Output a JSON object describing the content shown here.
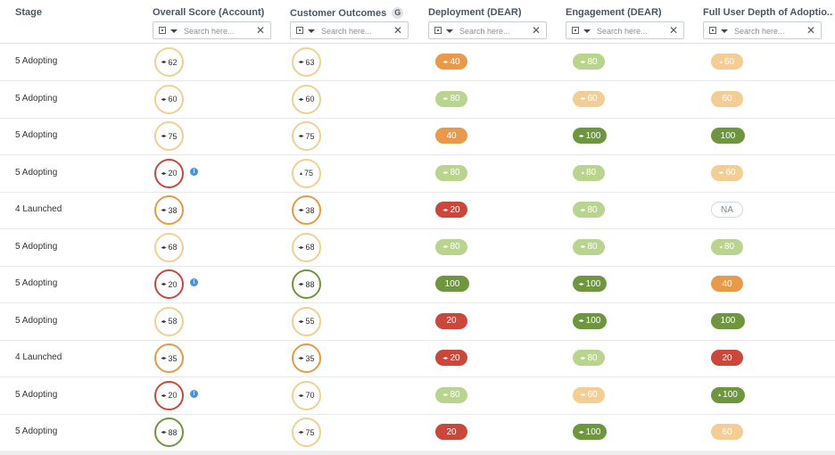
{
  "columns": [
    {
      "title": "Stage"
    },
    {
      "title": "Overall Score (Account)",
      "filter_placeholder": "Search here..."
    },
    {
      "title": "Customer Outcomes",
      "badge": "G",
      "filter_placeholder": "Search here..."
    },
    {
      "title": "Deployment (DEAR)",
      "filter_placeholder": "Search here..."
    },
    {
      "title": "Engagement (DEAR)",
      "filter_placeholder": "Search here..."
    },
    {
      "title": "Full User Depth of Adoptio...",
      "filter_placeholder": "Search here..."
    }
  ],
  "status_colors": {
    "orange": "#e99a48",
    "red": "#c9473b",
    "light_green": "#b9d48f",
    "dark_green": "#6e963f",
    "light_orange": "#f3cd93"
  },
  "info_icon": "i",
  "rows": [
    {
      "stage": "5 Adopting",
      "overall": {
        "value": "62",
        "trend": "flat",
        "ring": "light"
      },
      "outcomes": {
        "value": "63",
        "trend": "flat",
        "ring": "light"
      },
      "deployment": {
        "value": "40",
        "trend": "flat",
        "color": "orange"
      },
      "engagement": {
        "value": "80",
        "trend": "flat",
        "color": "light-green"
      },
      "depth": {
        "value": "60",
        "trend": "up",
        "color": "light-orange"
      }
    },
    {
      "stage": "5 Adopting",
      "overall": {
        "value": "60",
        "trend": "flat",
        "ring": "light"
      },
      "outcomes": {
        "value": "60",
        "trend": "flat",
        "ring": "light"
      },
      "deployment": {
        "value": "80",
        "trend": "flat",
        "color": "light-green"
      },
      "engagement": {
        "value": "60",
        "trend": "flat",
        "color": "light-orange"
      },
      "depth": {
        "value": "60",
        "trend": "none",
        "color": "light-orange"
      }
    },
    {
      "stage": "5 Adopting",
      "overall": {
        "value": "75",
        "trend": "flat",
        "ring": "light"
      },
      "outcomes": {
        "value": "75",
        "trend": "flat",
        "ring": "light"
      },
      "deployment": {
        "value": "40",
        "trend": "none",
        "color": "orange"
      },
      "engagement": {
        "value": "100",
        "trend": "flat",
        "color": "dark-green"
      },
      "depth": {
        "value": "100",
        "trend": "none",
        "color": "dark-green"
      }
    },
    {
      "stage": "5 Adopting",
      "overall": {
        "value": "20",
        "trend": "flat",
        "ring": "red",
        "info": true
      },
      "outcomes": {
        "value": "75",
        "trend": "up",
        "ring": "light"
      },
      "deployment": {
        "value": "80",
        "trend": "flat",
        "color": "light-green"
      },
      "engagement": {
        "value": "80",
        "trend": "up",
        "color": "light-green"
      },
      "depth": {
        "value": "60",
        "trend": "flat",
        "color": "light-orange"
      }
    },
    {
      "stage": "4 Launched",
      "overall": {
        "value": "38",
        "trend": "flat",
        "ring": "orange"
      },
      "outcomes": {
        "value": "38",
        "trend": "flat",
        "ring": "orange"
      },
      "deployment": {
        "value": "20",
        "trend": "flat",
        "color": "red"
      },
      "engagement": {
        "value": "80",
        "trend": "flat",
        "color": "light-green"
      },
      "depth": {
        "value": "NA",
        "trend": "none",
        "color": "na"
      }
    },
    {
      "stage": "5 Adopting",
      "overall": {
        "value": "68",
        "trend": "flat",
        "ring": "light"
      },
      "outcomes": {
        "value": "68",
        "trend": "flat",
        "ring": "light"
      },
      "deployment": {
        "value": "80",
        "trend": "flat",
        "color": "light-green"
      },
      "engagement": {
        "value": "80",
        "trend": "flat",
        "color": "light-green"
      },
      "depth": {
        "value": "80",
        "trend": "up",
        "color": "light-green"
      }
    },
    {
      "stage": "5 Adopting",
      "overall": {
        "value": "20",
        "trend": "flat",
        "ring": "red",
        "info": true
      },
      "outcomes": {
        "value": "88",
        "trend": "flat",
        "ring": "green"
      },
      "deployment": {
        "value": "100",
        "trend": "none",
        "color": "dark-green"
      },
      "engagement": {
        "value": "100",
        "trend": "flat",
        "color": "dark-green"
      },
      "depth": {
        "value": "40",
        "trend": "none",
        "color": "orange"
      }
    },
    {
      "stage": "5 Adopting",
      "overall": {
        "value": "58",
        "trend": "flat",
        "ring": "light"
      },
      "outcomes": {
        "value": "55",
        "trend": "flat",
        "ring": "light"
      },
      "deployment": {
        "value": "20",
        "trend": "none",
        "color": "red"
      },
      "engagement": {
        "value": "100",
        "trend": "flat",
        "color": "dark-green"
      },
      "depth": {
        "value": "100",
        "trend": "none",
        "color": "dark-green"
      }
    },
    {
      "stage": "4 Launched",
      "overall": {
        "value": "35",
        "trend": "flat",
        "ring": "orange"
      },
      "outcomes": {
        "value": "35",
        "trend": "flat",
        "ring": "orange"
      },
      "deployment": {
        "value": "20",
        "trend": "flat",
        "color": "red"
      },
      "engagement": {
        "value": "80",
        "trend": "flat",
        "color": "light-green"
      },
      "depth": {
        "value": "20",
        "trend": "none",
        "color": "red"
      }
    },
    {
      "stage": "5 Adopting",
      "overall": {
        "value": "20",
        "trend": "flat",
        "ring": "red",
        "info": true
      },
      "outcomes": {
        "value": "70",
        "trend": "flat",
        "ring": "light"
      },
      "deployment": {
        "value": "80",
        "trend": "flat",
        "color": "light-green"
      },
      "engagement": {
        "value": "60",
        "trend": "flat",
        "color": "light-orange"
      },
      "depth": {
        "value": "100",
        "trend": "up",
        "color": "dark-green"
      }
    },
    {
      "stage": "5 Adopting",
      "overall": {
        "value": "88",
        "trend": "flat",
        "ring": "green"
      },
      "outcomes": {
        "value": "75",
        "trend": "flat",
        "ring": "light"
      },
      "deployment": {
        "value": "20",
        "trend": "none",
        "color": "red"
      },
      "engagement": {
        "value": "100",
        "trend": "flat",
        "color": "dark-green"
      },
      "depth": {
        "value": "60",
        "trend": "none",
        "color": "light-orange"
      }
    }
  ]
}
